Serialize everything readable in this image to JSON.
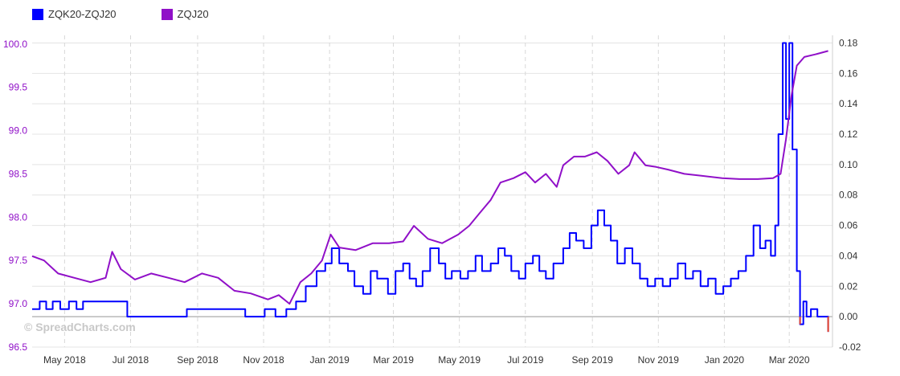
{
  "legend": [
    {
      "label": "ZQK20-ZQJ20",
      "color": "#0000ff"
    },
    {
      "label": "ZQJ20",
      "color": "#9010c8"
    }
  ],
  "watermark": "© SpreadCharts.com",
  "chart_data": {
    "type": "line",
    "x_axis": {
      "min": "2018-04-01",
      "max": "2020-04-10",
      "tick_labels": [
        "May 2018",
        "Jul 2018",
        "Sep 2018",
        "Nov 2018",
        "Jan 2019",
        "Mar 2019",
        "May 2019",
        "Jul 2019",
        "Sep 2019",
        "Nov 2019",
        "Jan 2020",
        "Mar 2020"
      ],
      "tick_dates": [
        "2018-05-01",
        "2018-07-01",
        "2018-09-01",
        "2018-11-01",
        "2019-01-01",
        "2019-03-01",
        "2019-05-01",
        "2019-07-01",
        "2019-09-01",
        "2019-11-01",
        "2020-01-01",
        "2020-03-01"
      ]
    },
    "y_left": {
      "min": 96.5,
      "max": 100.1,
      "tick_labels": [
        "96.5",
        "97.0",
        "97.5",
        "98.0",
        "98.5",
        "99.0",
        "99.5",
        "100.0"
      ],
      "color": "#9010c8"
    },
    "y_right": {
      "min": -0.02,
      "max": 0.185,
      "tick_labels": [
        "-0.02",
        "0.00",
        "0.02",
        "0.04",
        "0.06",
        "0.08",
        "0.10",
        "0.12",
        "0.14",
        "0.16",
        "0.18"
      ],
      "negative_color": "#e8472a"
    },
    "grid": true,
    "series": [
      {
        "name": "ZQK20-ZQJ20",
        "axis": "right",
        "color": "#0000ff",
        "step": true,
        "points": [
          [
            "2018-04-01",
            0.005
          ],
          [
            "2018-04-08",
            0.01
          ],
          [
            "2018-04-14",
            0.005
          ],
          [
            "2018-04-20",
            0.01
          ],
          [
            "2018-04-27",
            0.005
          ],
          [
            "2018-05-05",
            0.01
          ],
          [
            "2018-05-12",
            0.005
          ],
          [
            "2018-05-18",
            0.01
          ],
          [
            "2018-06-28",
            0.0
          ],
          [
            "2018-08-22",
            0.005
          ],
          [
            "2018-10-15",
            0.0
          ],
          [
            "2018-11-02",
            0.005
          ],
          [
            "2018-11-12",
            0.0
          ],
          [
            "2018-11-22",
            0.005
          ],
          [
            "2018-12-01",
            0.01
          ],
          [
            "2018-12-10",
            0.02
          ],
          [
            "2018-12-20",
            0.03
          ],
          [
            "2018-12-28",
            0.035
          ],
          [
            "2019-01-03",
            0.045
          ],
          [
            "2019-01-10",
            0.035
          ],
          [
            "2019-01-18",
            0.03
          ],
          [
            "2019-01-24",
            0.02
          ],
          [
            "2019-02-01",
            0.015
          ],
          [
            "2019-02-08",
            0.03
          ],
          [
            "2019-02-14",
            0.025
          ],
          [
            "2019-02-24",
            0.015
          ],
          [
            "2019-03-03",
            0.03
          ],
          [
            "2019-03-10",
            0.035
          ],
          [
            "2019-03-16",
            0.025
          ],
          [
            "2019-03-22",
            0.02
          ],
          [
            "2019-03-28",
            0.03
          ],
          [
            "2019-04-04",
            0.045
          ],
          [
            "2019-04-12",
            0.035
          ],
          [
            "2019-04-18",
            0.025
          ],
          [
            "2019-04-24",
            0.03
          ],
          [
            "2019-05-02",
            0.025
          ],
          [
            "2019-05-09",
            0.03
          ],
          [
            "2019-05-16",
            0.04
          ],
          [
            "2019-05-22",
            0.03
          ],
          [
            "2019-05-30",
            0.035
          ],
          [
            "2019-06-06",
            0.045
          ],
          [
            "2019-06-12",
            0.04
          ],
          [
            "2019-06-18",
            0.03
          ],
          [
            "2019-06-25",
            0.025
          ],
          [
            "2019-07-01",
            0.035
          ],
          [
            "2019-07-08",
            0.04
          ],
          [
            "2019-07-14",
            0.03
          ],
          [
            "2019-07-20",
            0.025
          ],
          [
            "2019-07-27",
            0.035
          ],
          [
            "2019-08-05",
            0.045
          ],
          [
            "2019-08-11",
            0.055
          ],
          [
            "2019-08-17",
            0.05
          ],
          [
            "2019-08-24",
            0.045
          ],
          [
            "2019-08-31",
            0.06
          ],
          [
            "2019-09-06",
            0.07
          ],
          [
            "2019-09-12",
            0.06
          ],
          [
            "2019-09-18",
            0.05
          ],
          [
            "2019-09-24",
            0.035
          ],
          [
            "2019-10-01",
            0.045
          ],
          [
            "2019-10-08",
            0.035
          ],
          [
            "2019-10-15",
            0.025
          ],
          [
            "2019-10-22",
            0.02
          ],
          [
            "2019-10-29",
            0.025
          ],
          [
            "2019-11-05",
            0.02
          ],
          [
            "2019-11-12",
            0.025
          ],
          [
            "2019-11-19",
            0.035
          ],
          [
            "2019-11-26",
            0.025
          ],
          [
            "2019-12-03",
            0.03
          ],
          [
            "2019-12-10",
            0.02
          ],
          [
            "2019-12-17",
            0.025
          ],
          [
            "2019-12-24",
            0.015
          ],
          [
            "2019-12-31",
            0.02
          ],
          [
            "2020-01-07",
            0.025
          ],
          [
            "2020-01-14",
            0.03
          ],
          [
            "2020-01-21",
            0.04
          ],
          [
            "2020-01-28",
            0.06
          ],
          [
            "2020-02-03",
            0.045
          ],
          [
            "2020-02-08",
            0.05
          ],
          [
            "2020-02-13",
            0.04
          ],
          [
            "2020-02-17",
            0.06
          ],
          [
            "2020-02-20",
            0.12
          ],
          [
            "2020-02-24",
            0.18
          ],
          [
            "2020-02-27",
            0.13
          ],
          [
            "2020-03-01",
            0.18
          ],
          [
            "2020-03-04",
            0.11
          ],
          [
            "2020-03-08",
            0.03
          ],
          [
            "2020-03-11",
            -0.005
          ],
          [
            "2020-03-14",
            0.01
          ],
          [
            "2020-03-17",
            0.0
          ],
          [
            "2020-03-21",
            0.005
          ],
          [
            "2020-03-27",
            0.0
          ],
          [
            "2020-04-02",
            0.0
          ],
          [
            "2020-04-06",
            -0.01
          ]
        ]
      },
      {
        "name": "ZQJ20",
        "axis": "left",
        "color": "#9010c8",
        "step": false,
        "points": [
          [
            "2018-04-01",
            97.55
          ],
          [
            "2018-04-12",
            97.5
          ],
          [
            "2018-04-25",
            97.35
          ],
          [
            "2018-05-10",
            97.3
          ],
          [
            "2018-05-25",
            97.25
          ],
          [
            "2018-06-08",
            97.3
          ],
          [
            "2018-06-14",
            97.6
          ],
          [
            "2018-06-22",
            97.4
          ],
          [
            "2018-07-05",
            97.28
          ],
          [
            "2018-07-20",
            97.35
          ],
          [
            "2018-08-05",
            97.3
          ],
          [
            "2018-08-20",
            97.25
          ],
          [
            "2018-09-05",
            97.35
          ],
          [
            "2018-09-20",
            97.3
          ],
          [
            "2018-10-05",
            97.15
          ],
          [
            "2018-10-20",
            97.12
          ],
          [
            "2018-11-05",
            97.05
          ],
          [
            "2018-11-15",
            97.1
          ],
          [
            "2018-11-25",
            97.0
          ],
          [
            "2018-12-05",
            97.25
          ],
          [
            "2018-12-15",
            97.35
          ],
          [
            "2018-12-25",
            97.5
          ],
          [
            "2019-01-02",
            97.8
          ],
          [
            "2019-01-10",
            97.65
          ],
          [
            "2019-01-25",
            97.62
          ],
          [
            "2019-02-10",
            97.7
          ],
          [
            "2019-02-25",
            97.7
          ],
          [
            "2019-03-10",
            97.72
          ],
          [
            "2019-03-20",
            97.9
          ],
          [
            "2019-04-02",
            97.75
          ],
          [
            "2019-04-15",
            97.7
          ],
          [
            "2019-04-30",
            97.8
          ],
          [
            "2019-05-10",
            97.9
          ],
          [
            "2019-05-20",
            98.05
          ],
          [
            "2019-05-30",
            98.2
          ],
          [
            "2019-06-08",
            98.4
          ],
          [
            "2019-06-20",
            98.45
          ],
          [
            "2019-07-01",
            98.52
          ],
          [
            "2019-07-10",
            98.4
          ],
          [
            "2019-07-20",
            98.5
          ],
          [
            "2019-07-30",
            98.35
          ],
          [
            "2019-08-05",
            98.6
          ],
          [
            "2019-08-15",
            98.7
          ],
          [
            "2019-08-25",
            98.7
          ],
          [
            "2019-09-05",
            98.75
          ],
          [
            "2019-09-15",
            98.65
          ],
          [
            "2019-09-25",
            98.5
          ],
          [
            "2019-10-05",
            98.6
          ],
          [
            "2019-10-10",
            98.75
          ],
          [
            "2019-10-20",
            98.6
          ],
          [
            "2019-10-30",
            98.58
          ],
          [
            "2019-11-10",
            98.55
          ],
          [
            "2019-11-25",
            98.5
          ],
          [
            "2019-12-10",
            98.48
          ],
          [
            "2019-12-30",
            98.45
          ],
          [
            "2020-01-15",
            98.44
          ],
          [
            "2020-02-01",
            98.44
          ],
          [
            "2020-02-15",
            98.45
          ],
          [
            "2020-02-22",
            98.5
          ],
          [
            "2020-02-27",
            98.9
          ],
          [
            "2020-03-03",
            99.4
          ],
          [
            "2020-03-08",
            99.75
          ],
          [
            "2020-03-15",
            99.85
          ],
          [
            "2020-03-25",
            99.88
          ],
          [
            "2020-04-06",
            99.92
          ]
        ]
      }
    ]
  }
}
